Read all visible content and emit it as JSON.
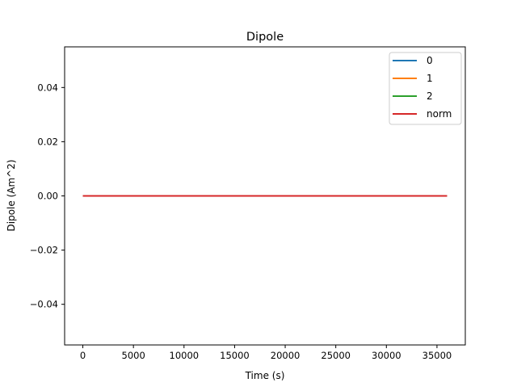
{
  "chart_data": {
    "type": "line",
    "title": "Dipole",
    "xlabel": "Time (s)",
    "ylabel": "Dipole (Am^2)",
    "xlim": [
      -1800,
      37800
    ],
    "ylim": [
      -0.055,
      0.055
    ],
    "x_ticks": [
      0,
      5000,
      10000,
      15000,
      20000,
      25000,
      30000,
      35000
    ],
    "x_tick_labels": [
      "0",
      "5000",
      "10000",
      "15000",
      "20000",
      "25000",
      "30000",
      "35000"
    ],
    "y_ticks": [
      -0.04,
      -0.02,
      0.0,
      0.02,
      0.04
    ],
    "y_tick_labels": [
      "−0.04",
      "−0.02",
      "0.00",
      "0.02",
      "0.04"
    ],
    "grid": false,
    "legend_position": "top-right",
    "series": [
      {
        "name": "0",
        "color": "#1f77b4",
        "x": [
          0,
          36000
        ],
        "y": [
          0,
          0
        ]
      },
      {
        "name": "1",
        "color": "#ff7f0e",
        "x": [
          0,
          36000
        ],
        "y": [
          0,
          0
        ]
      },
      {
        "name": "2",
        "color": "#2ca02c",
        "x": [
          0,
          36000
        ],
        "y": [
          0,
          0
        ]
      },
      {
        "name": "norm",
        "color": "#d62728",
        "x": [
          0,
          36000
        ],
        "y": [
          0,
          0
        ]
      }
    ]
  }
}
